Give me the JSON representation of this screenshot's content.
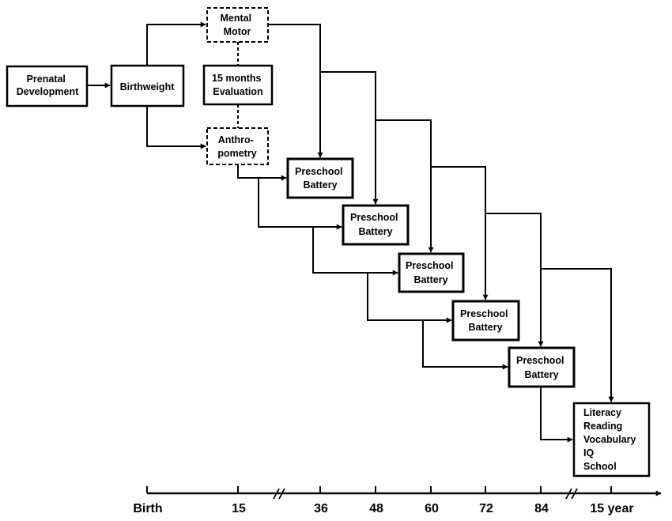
{
  "boxes": {
    "prenatal": [
      "Prenatal",
      "Development"
    ],
    "birthweight": [
      "Birthweight"
    ],
    "mental_motor": [
      "Mental",
      "Motor"
    ],
    "evaluation_15m": [
      "15 months",
      "Evaluation"
    ],
    "anthropometry": [
      "Anthro-",
      "pometry"
    ],
    "preschool_36": [
      "Preschool",
      "Battery"
    ],
    "preschool_48": [
      "Preschool",
      "Battery"
    ],
    "preschool_60": [
      "Preschool",
      "Battery"
    ],
    "preschool_72": [
      "Preschool",
      "Battery"
    ],
    "preschool_84": [
      "Preschool",
      "Battery"
    ],
    "outcomes": [
      "Literacy",
      "Reading",
      "Vocabulary",
      "IQ",
      "School"
    ]
  },
  "axis": {
    "labels": [
      "Birth",
      "15",
      "36",
      "48",
      "60",
      "72",
      "84",
      "15 year"
    ]
  },
  "colors": {
    "stroke": "#000000",
    "background": "#ffffff"
  }
}
